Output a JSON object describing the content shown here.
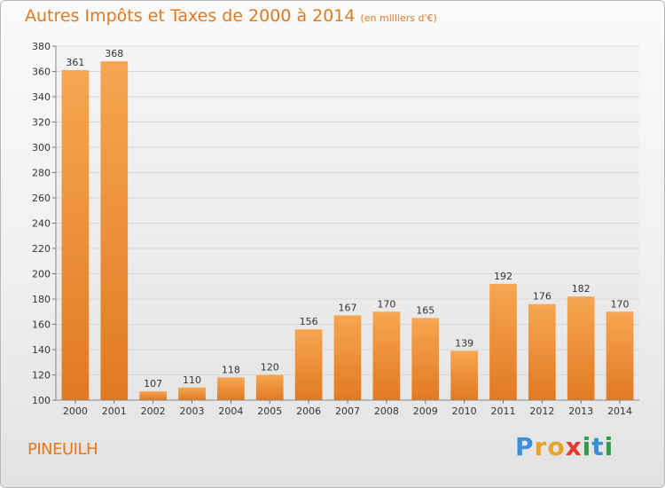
{
  "title": "Autres Impôts et Taxes de 2000 à 2014",
  "subtitle": "(en milliers d'€)",
  "location": "PINEUILH",
  "brand": {
    "letters": [
      {
        "ch": "P",
        "color": "#3a8fd6"
      },
      {
        "ch": "r",
        "color": "#e8a32a"
      },
      {
        "ch": "o",
        "color": "#e8a32a"
      },
      {
        "ch": "x",
        "color": "#e23b2e"
      },
      {
        "ch": "i",
        "color": "#2e9e48"
      },
      {
        "ch": "t",
        "color": "#3a8fd6"
      },
      {
        "ch": "i",
        "color": "#2e9e48"
      }
    ]
  },
  "colors": {
    "bar_light": "#f7a652",
    "bar_dark": "#e07a22",
    "grid": "#d8d8d8",
    "accent": "#e07a1f"
  },
  "chart_data": {
    "type": "bar",
    "categories": [
      "2000",
      "2001",
      "2002",
      "2003",
      "2004",
      "2005",
      "2006",
      "2007",
      "2008",
      "2009",
      "2010",
      "2011",
      "2012",
      "2013",
      "2014"
    ],
    "values": [
      361,
      368,
      107,
      110,
      118,
      120,
      156,
      167,
      170,
      165,
      139,
      192,
      176,
      182,
      170
    ],
    "ylim": [
      100,
      380
    ],
    "yticks": [
      100,
      120,
      140,
      160,
      180,
      200,
      220,
      240,
      260,
      280,
      300,
      320,
      340,
      360,
      380
    ],
    "grid": true,
    "xlabel": "",
    "ylabel": ""
  }
}
